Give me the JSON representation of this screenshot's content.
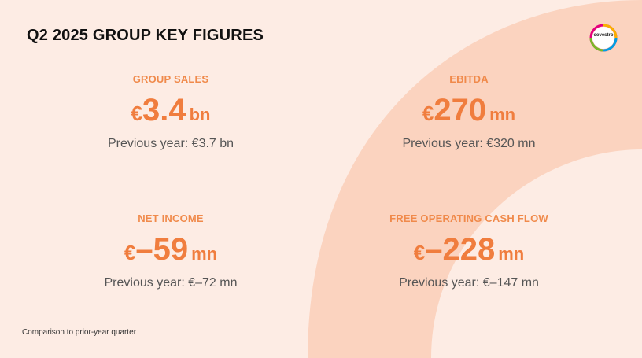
{
  "title": "Q2 2025 GROUP KEY FIGURES",
  "logo": {
    "text": "covestro"
  },
  "kpis": [
    {
      "label": "GROUP SALES",
      "currency": "€",
      "value": "3.4",
      "unit": "bn",
      "previous": "Previous year: €3.7 bn"
    },
    {
      "label": "EBITDA",
      "currency": "€",
      "value": "270",
      "unit": "mn",
      "previous": "Previous year: €320 mn"
    },
    {
      "label": "NET INCOME",
      "currency": "€",
      "value": "–59",
      "unit": "mn",
      "previous": "Previous year: €–72 mn"
    },
    {
      "label": "FREE OPERATING CASH FLOW",
      "currency": "€",
      "value": "–228",
      "unit": "mn",
      "previous": "Previous year: €–147 mn"
    }
  ],
  "footnote": "Comparison to prior-year quarter",
  "colors": {
    "background": "#fdece4",
    "arc": "#fbd3bf",
    "accent": "#f07d3e",
    "label": "#f08a4b"
  }
}
